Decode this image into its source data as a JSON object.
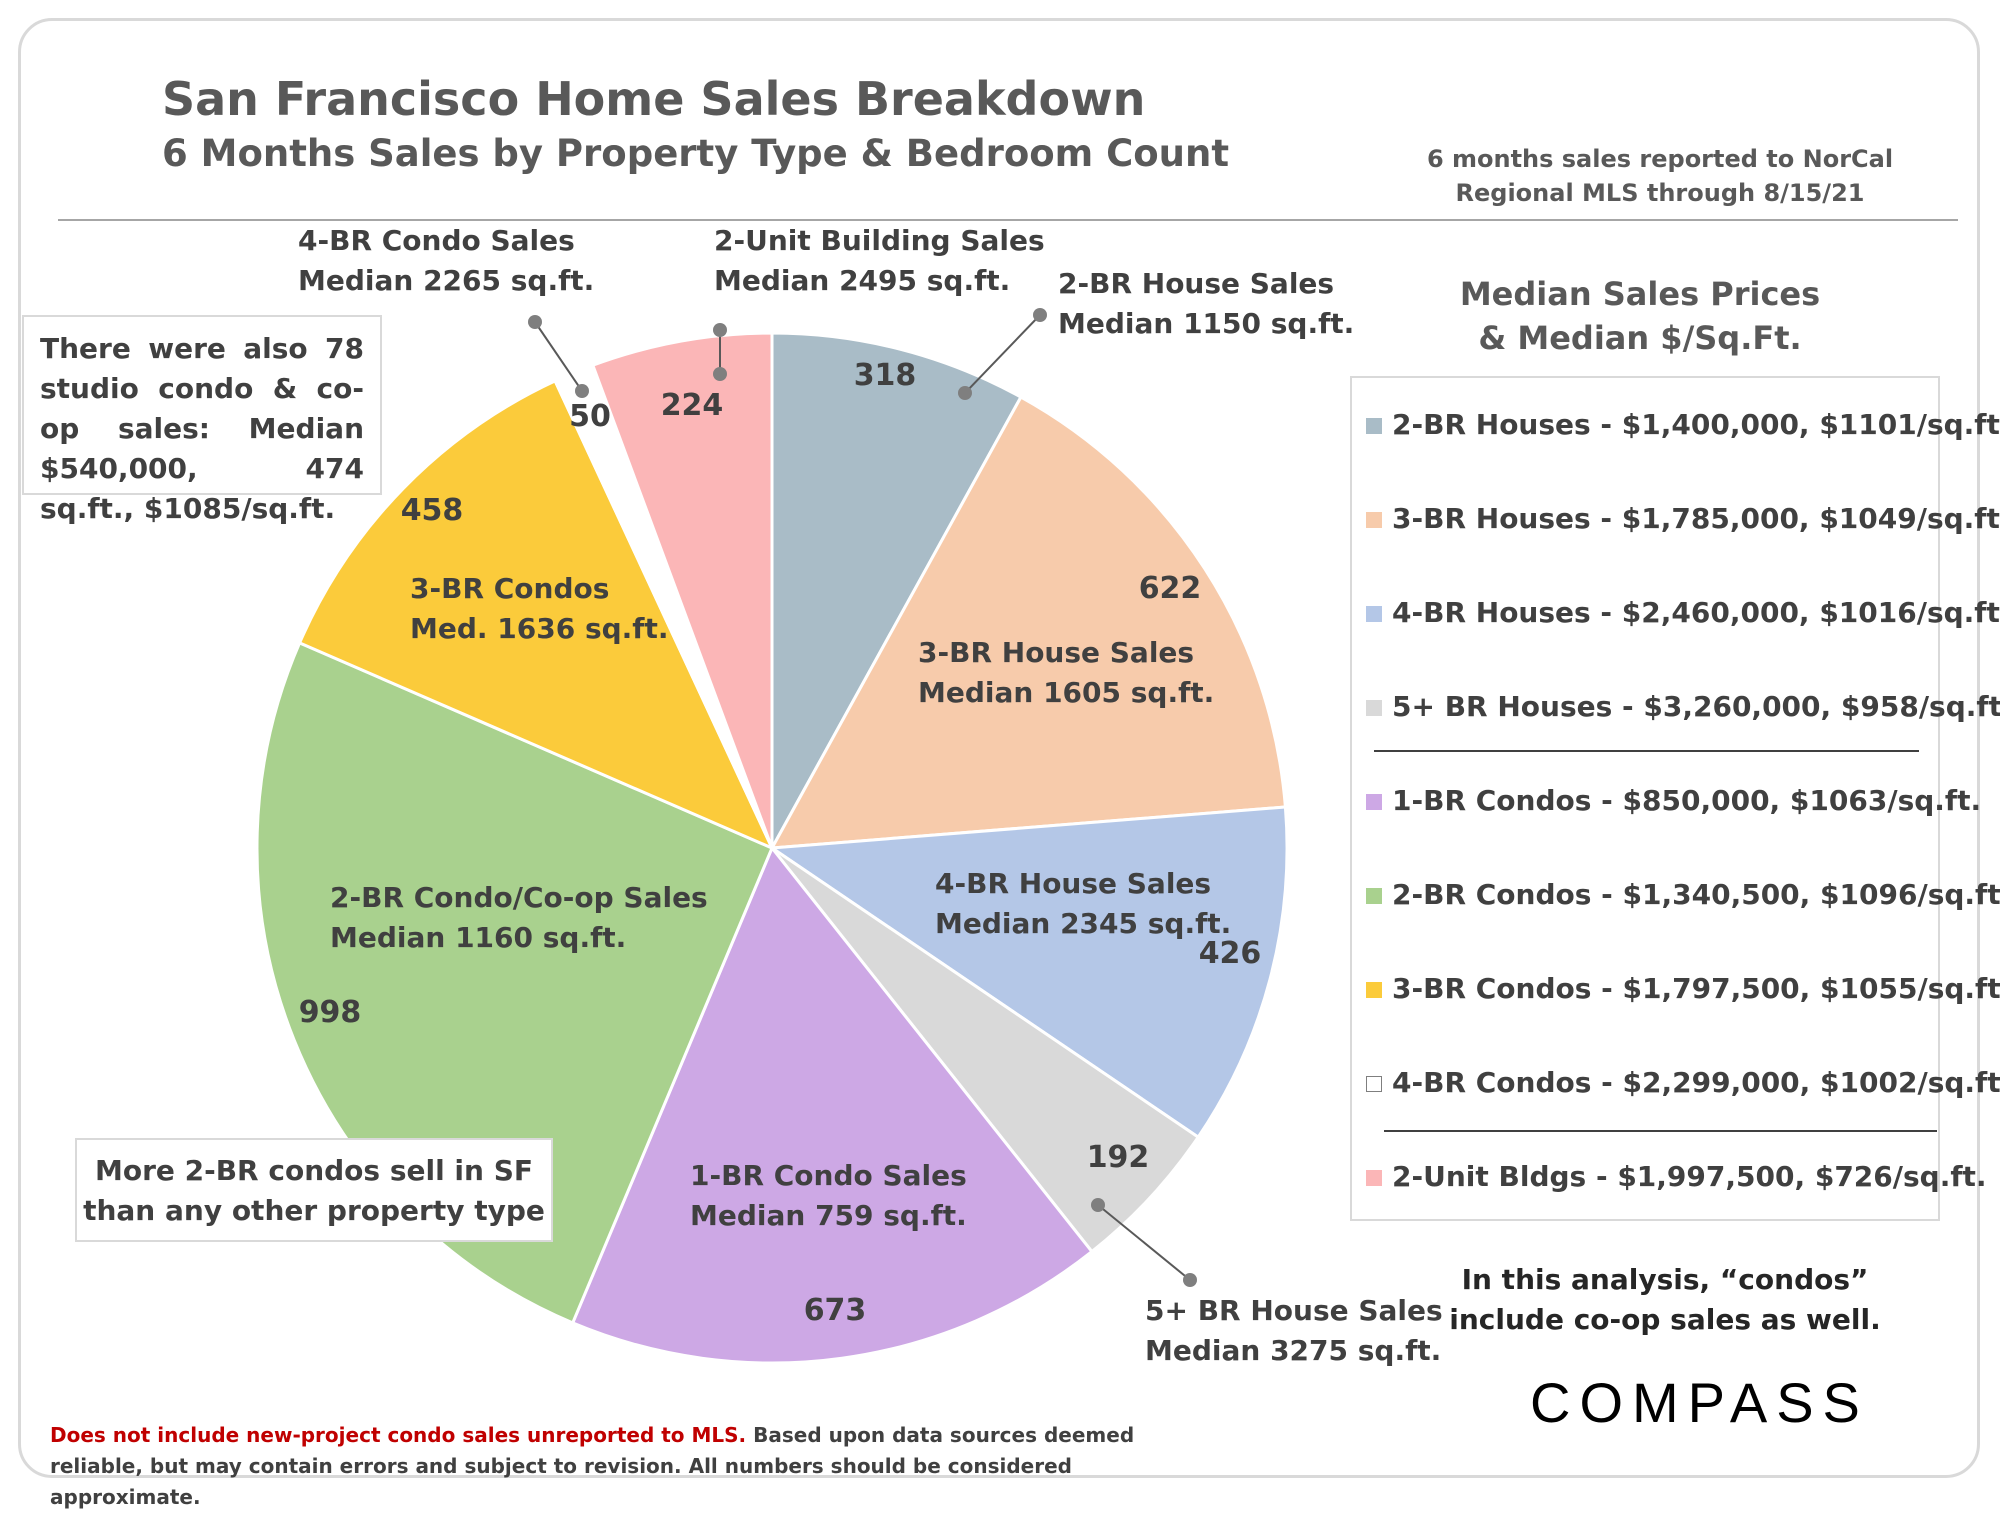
{
  "chart_data": {
    "type": "pie",
    "title": "San Francisco Home Sales Breakdown",
    "subtitle": "6 Months Sales by Property Type & Bedroom Count",
    "source_note": "6 months sales reported to NorCal Regional MLS through 8/15/21",
    "start_angle_deg": 0,
    "direction": "clockwise",
    "slices": [
      {
        "label": "2-BR House Sales",
        "sublabel": "Median 1150 sq.ft.",
        "value": 318,
        "color": "#a9bcc7"
      },
      {
        "label": "3-BR House Sales",
        "sublabel": "Median 1605 sq.ft.",
        "value": 622,
        "color": "#f7cbab"
      },
      {
        "label": "4-BR House Sales",
        "sublabel": "Median 2345 sq.ft.",
        "value": 426,
        "color": "#b4c7e7"
      },
      {
        "label": "5+ BR House Sales",
        "sublabel": "Median 3275 sq.ft.",
        "value": 192,
        "color": "#d9d9d9"
      },
      {
        "label": "1-BR Condo Sales",
        "sublabel": "Median 759 sq.ft.",
        "value": 673,
        "color": "#cda8e5"
      },
      {
        "label": "2-BR Condo/Co-op Sales",
        "sublabel": "Median 1160 sq.ft.",
        "value": 998,
        "color": "#a9d18e"
      },
      {
        "label": "3-BR Condos",
        "sublabel": "Med. 1636 sq.ft.",
        "value": 458,
        "color": "#fbcb3b"
      },
      {
        "label": "4-BR Condo Sales",
        "sublabel": "Median 2265 sq.ft.",
        "value": 50,
        "color": "#ffffff"
      },
      {
        "label": "2-Unit Building Sales",
        "sublabel": "Median 2495 sq.ft.",
        "value": 224,
        "color": "#fbb6b7"
      }
    ]
  },
  "callouts": {
    "studio": "There were also 78 studio condo & co-op sales: Median $540,000, 474 sq.ft., $1085/sq.ft.",
    "more_2br_line1": "More 2-BR condos sell in SF",
    "more_2br_line2": "than any other property type"
  },
  "legend": {
    "title_line1": "Median Sales Prices",
    "title_line2": "& Median $/Sq.Ft.",
    "items": [
      {
        "text": "2-BR Houses - $1,400,000, $1101/sq.ft.",
        "color": "#a9bcc7"
      },
      {
        "text": "3-BR Houses - $1,785,000, $1049/sq.ft.",
        "color": "#f7cbab"
      },
      {
        "text": "4-BR Houses - $2,460,000, $1016/sq.ft.",
        "color": "#b4c7e7"
      },
      {
        "text": "5+ BR Houses - $3,260,000, $958/sq.ft.",
        "color": "#d9d9d9"
      },
      {
        "text": "1-BR Condos - $850,000, $1063/sq.ft.",
        "color": "#cda8e5"
      },
      {
        "text": "2-BR Condos - $1,340,500, $1096/sq.ft.",
        "color": "#a9d18e"
      },
      {
        "text": "3-BR Condos - $1,797,500, $1055/sq.ft.",
        "color": "#fbcb3b"
      },
      {
        "text": "4-BR Condos - $2,299,000, $1002/sq.ft.",
        "color": "#ffffff"
      },
      {
        "text": "2-Unit Bldgs - $1,997,500, $726/sq.ft.",
        "color": "#fbb6b7"
      }
    ]
  },
  "note_line1": "In this analysis, “condos”",
  "note_line2": "include co-op sales as well.",
  "logo": "COMPASS",
  "disclaimer_red": "Does not include new-project condo sales unreported to MLS.",
  "disclaimer_rest": " Based upon data sources deemed reliable, but may contain errors and subject to revision. All numbers should be considered approximate."
}
